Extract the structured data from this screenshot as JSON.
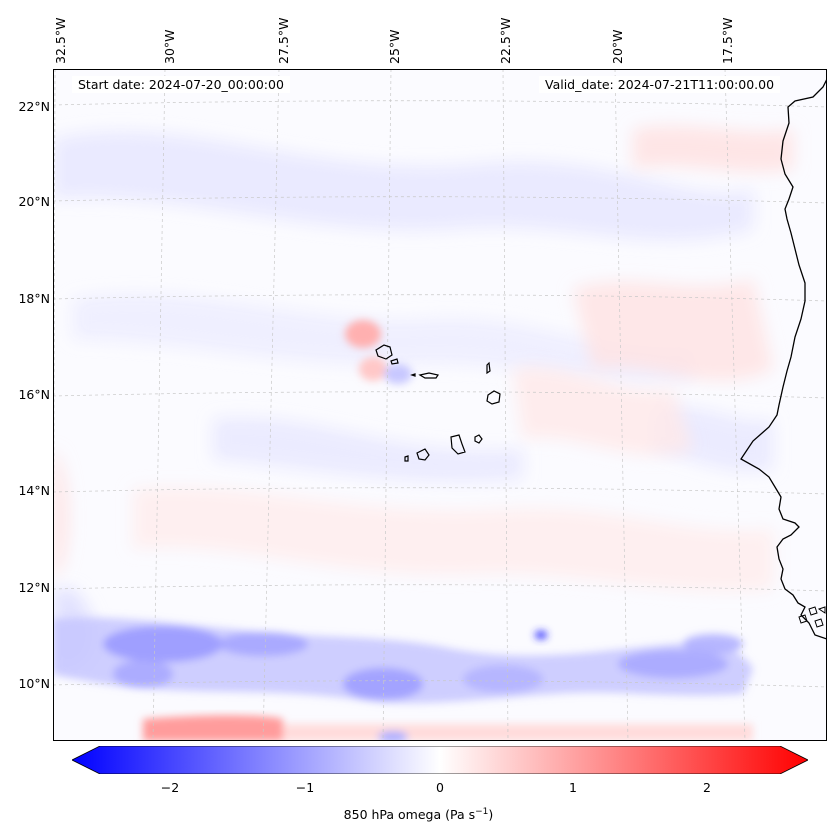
{
  "map": {
    "start_date": "Start date: 2024-07-20_00:00:00",
    "valid_date": "Valid_date: 2024-07-21T11:00:00.00",
    "lon_labels": [
      "32.5°W",
      "30°W",
      "27.5°W",
      "25°W",
      "22.5°W",
      "20°W",
      "17.5°W"
    ],
    "lat_labels": [
      "22°N",
      "20°N",
      "18°N",
      "16°N",
      "14°N",
      "12°N",
      "10°N"
    ],
    "variable": "850 hPa omega",
    "unit_text": "(Pa s",
    "unit_sup": "−1",
    "unit_close": ")",
    "colormap": "bwr"
  },
  "colorbar": {
    "ticks": [
      "−2",
      "−1",
      "0",
      "1",
      "2"
    ],
    "tick_values": [
      -2,
      -1,
      0,
      1,
      2
    ],
    "range": [
      -2.6,
      2.6
    ],
    "low_color": "#0000ff",
    "mid_color": "#ffffff",
    "high_color": "#ff0000"
  },
  "colors": {
    "coastline": "#000000",
    "gridline": "#c8c8c8"
  }
}
